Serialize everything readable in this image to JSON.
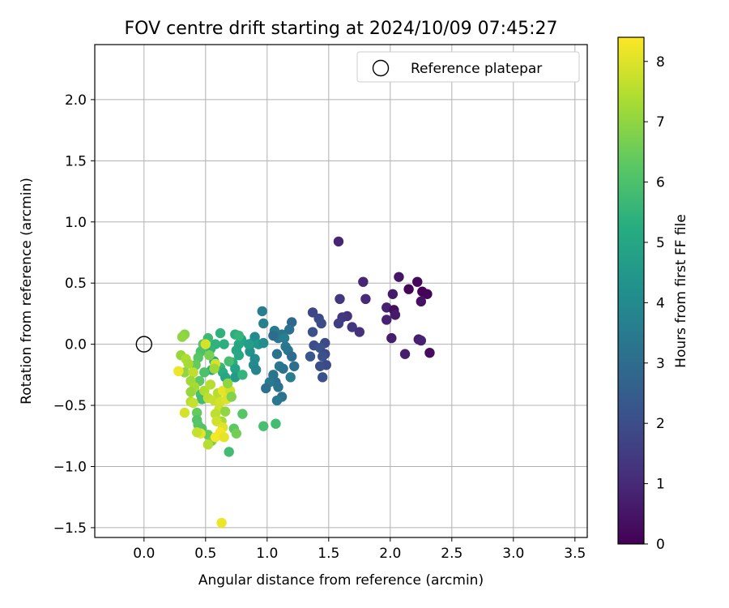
{
  "chart_data": {
    "type": "scatter",
    "title": "FOV centre drift starting at 2024/10/09 07:45:27",
    "xlabel": "Angular distance from reference (arcmin)",
    "ylabel": "Rotation from reference (arcmin)",
    "xlim": [
      -0.4,
      3.6
    ],
    "ylim": [
      -1.58,
      2.45
    ],
    "xticks": [
      0.0,
      0.5,
      1.0,
      1.5,
      2.0,
      2.5,
      3.0,
      3.5
    ],
    "xtick_labels": [
      "0.0",
      "0.5",
      "1.0",
      "1.5",
      "2.0",
      "2.5",
      "3.0",
      "3.5"
    ],
    "yticks": [
      -1.5,
      -1.0,
      -0.5,
      0.0,
      0.5,
      1.0,
      1.5,
      2.0
    ],
    "ytick_labels": [
      "−1.5",
      "−1.0",
      "−0.5",
      "0.0",
      "0.5",
      "1.0",
      "1.5",
      "2.0"
    ],
    "grid": true,
    "legend": {
      "placement": "top-right",
      "label": "Reference platepar"
    },
    "reference_point": {
      "x": 0.0,
      "y": 0.0
    },
    "colorbar": {
      "label": "Hours from first FF file",
      "colormap": "viridis",
      "range": [
        0,
        8.4
      ],
      "ticks": [
        0,
        1,
        2,
        3,
        4,
        5,
        6,
        7,
        8
      ],
      "tick_labels": [
        "0",
        "1",
        "2",
        "3",
        "4",
        "5",
        "6",
        "7",
        "8"
      ]
    },
    "points": [
      [
        1.58,
        0.84,
        0.9
      ],
      [
        2.07,
        0.55,
        0.5
      ],
      [
        2.22,
        0.51,
        0.2
      ],
      [
        2.15,
        0.45,
        0.1
      ],
      [
        2.26,
        0.43,
        0.05
      ],
      [
        2.3,
        0.41,
        0.1
      ],
      [
        2.02,
        0.41,
        0.6
      ],
      [
        2.25,
        0.35,
        0.4
      ],
      [
        1.78,
        0.51,
        0.9
      ],
      [
        1.59,
        0.37,
        1.4
      ],
      [
        1.8,
        0.37,
        1.0
      ],
      [
        1.97,
        0.3,
        0.8
      ],
      [
        2.03,
        0.28,
        0.3
      ],
      [
        2.04,
        0.24,
        0.6
      ],
      [
        1.97,
        0.2,
        0.8
      ],
      [
        1.65,
        0.23,
        1.2
      ],
      [
        1.61,
        0.22,
        1.4
      ],
      [
        1.58,
        0.17,
        1.6
      ],
      [
        1.69,
        0.14,
        1.4
      ],
      [
        1.75,
        0.1,
        1.2
      ],
      [
        2.01,
        0.05,
        0.7
      ],
      [
        2.23,
        0.04,
        0.7
      ],
      [
        2.25,
        0.03,
        0.8
      ],
      [
        2.32,
        -0.07,
        0.3
      ],
      [
        2.12,
        -0.08,
        0.7
      ],
      [
        1.37,
        0.26,
        1.8
      ],
      [
        1.42,
        0.21,
        1.9
      ],
      [
        1.44,
        0.17,
        2.0
      ],
      [
        1.37,
        0.1,
        2.1
      ],
      [
        1.47,
        0.01,
        1.9
      ],
      [
        1.38,
        -0.01,
        2.0
      ],
      [
        1.43,
        -0.03,
        2.2
      ],
      [
        1.47,
        -0.08,
        1.9
      ],
      [
        1.45,
        -0.1,
        2.1
      ],
      [
        1.35,
        -0.1,
        2.3
      ],
      [
        1.48,
        -0.17,
        1.9
      ],
      [
        1.43,
        -0.18,
        2.0
      ],
      [
        1.45,
        -0.27,
        2.1
      ],
      [
        1.2,
        0.18,
        2.8
      ],
      [
        1.18,
        0.12,
        3.1
      ],
      [
        1.12,
        0.08,
        3.3
      ],
      [
        1.06,
        0.11,
        3.5
      ],
      [
        1.09,
        0.05,
        3.4
      ],
      [
        1.05,
        0.07,
        3.0
      ],
      [
        1.14,
        0.05,
        3.6
      ],
      [
        1.15,
        -0.02,
        3.4
      ],
      [
        1.17,
        -0.05,
        3.3
      ],
      [
        1.2,
        -0.1,
        3.0
      ],
      [
        1.22,
        -0.18,
        3.1
      ],
      [
        1.08,
        -0.08,
        3.2
      ],
      [
        1.1,
        -0.18,
        3.4
      ],
      [
        1.13,
        -0.2,
        3.2
      ],
      [
        1.05,
        -0.25,
        3.3
      ],
      [
        1.07,
        -0.31,
        3.1
      ],
      [
        1.09,
        -0.35,
        3.2
      ],
      [
        1.02,
        -0.31,
        3.4
      ],
      [
        0.99,
        -0.36,
        3.1
      ],
      [
        1.12,
        -0.43,
        3.2
      ],
      [
        1.08,
        -0.46,
        3.4
      ],
      [
        1.19,
        -0.27,
        3.6
      ],
      [
        0.97,
        0.17,
        3.7
      ],
      [
        0.96,
        0.27,
        3.6
      ],
      [
        0.9,
        0.06,
        4.0
      ],
      [
        0.88,
        0.01,
        4.2
      ],
      [
        0.86,
        -0.06,
        4.3
      ],
      [
        0.9,
        -0.12,
        4.1
      ],
      [
        0.89,
        -0.17,
        4.0
      ],
      [
        0.91,
        -0.21,
        3.8
      ],
      [
        0.93,
        0.0,
        4.4
      ],
      [
        0.97,
        0.01,
        4.1
      ],
      [
        0.85,
        0.0,
        4.7
      ],
      [
        0.79,
        0.04,
        4.9
      ],
      [
        0.77,
        0.0,
        5.0
      ],
      [
        0.75,
        -0.05,
        5.0
      ],
      [
        0.77,
        -0.09,
        5.1
      ],
      [
        0.72,
        -0.15,
        5.3
      ],
      [
        0.74,
        -0.2,
        4.9
      ],
      [
        0.74,
        -0.27,
        4.6
      ],
      [
        0.8,
        -0.25,
        5.5
      ],
      [
        0.74,
        0.08,
        5.3
      ],
      [
        0.77,
        0.07,
        5.5
      ],
      [
        0.62,
        0.09,
        5.4
      ],
      [
        0.65,
        0.0,
        5.3
      ],
      [
        0.58,
        0.0,
        5.4
      ],
      [
        0.54,
        -0.04,
        5.5
      ],
      [
        0.57,
        -0.14,
        5.1
      ],
      [
        0.55,
        -0.21,
        5.0
      ],
      [
        0.62,
        -0.19,
        5.6
      ],
      [
        0.64,
        -0.23,
        5.3
      ],
      [
        0.66,
        -0.27,
        5.0
      ],
      [
        0.69,
        -0.14,
        5.9
      ],
      [
        0.52,
        0.05,
        5.7
      ],
      [
        0.48,
        0.0,
        6.2
      ],
      [
        0.46,
        -0.06,
        6.0
      ],
      [
        0.44,
        -0.11,
        6.2
      ],
      [
        0.42,
        -0.17,
        6.4
      ],
      [
        0.49,
        -0.23,
        6.0
      ],
      [
        0.45,
        -0.3,
        6.3
      ],
      [
        0.46,
        -0.41,
        5.9
      ],
      [
        0.47,
        -0.45,
        5.8
      ],
      [
        0.43,
        -0.56,
        6.4
      ],
      [
        0.43,
        -0.62,
        6.1
      ],
      [
        0.44,
        -0.66,
        6.2
      ],
      [
        0.47,
        -0.69,
        6.1
      ],
      [
        0.52,
        -0.74,
        6.4
      ],
      [
        0.55,
        -0.79,
        6.6
      ],
      [
        0.69,
        -0.88,
        5.8
      ],
      [
        0.97,
        -0.67,
        5.9
      ],
      [
        1.07,
        -0.65,
        5.8
      ],
      [
        0.8,
        -0.57,
        6.2
      ],
      [
        0.73,
        -0.69,
        6.3
      ],
      [
        0.75,
        -0.73,
        6.6
      ],
      [
        0.33,
        0.08,
        6.9
      ],
      [
        0.31,
        0.06,
        7.0
      ],
      [
        0.3,
        -0.09,
        7.1
      ],
      [
        0.34,
        -0.12,
        7.4
      ],
      [
        0.36,
        -0.16,
        7.3
      ],
      [
        0.33,
        -0.23,
        7.0
      ],
      [
        0.4,
        -0.23,
        7.6
      ],
      [
        0.38,
        -0.3,
        7.2
      ],
      [
        0.41,
        -0.35,
        7.3
      ],
      [
        0.38,
        -0.39,
        7.1
      ],
      [
        0.38,
        -0.47,
        7.5
      ],
      [
        0.49,
        -0.38,
        7.4
      ],
      [
        0.54,
        -0.33,
        7.5
      ],
      [
        0.52,
        -0.44,
        7.6
      ],
      [
        0.57,
        -0.46,
        7.7
      ],
      [
        0.6,
        -0.4,
        7.5
      ],
      [
        0.62,
        -0.47,
        7.9
      ],
      [
        0.64,
        -0.38,
        8.1
      ],
      [
        0.7,
        -0.38,
        7.8
      ],
      [
        0.67,
        -0.45,
        8.0
      ],
      [
        0.61,
        -0.53,
        7.8
      ],
      [
        0.58,
        -0.57,
        7.6
      ],
      [
        0.63,
        -0.63,
        7.3
      ],
      [
        0.59,
        -0.63,
        7.8
      ],
      [
        0.64,
        -0.68,
        8.0
      ],
      [
        0.62,
        -0.72,
        8.3
      ],
      [
        0.58,
        -0.76,
        8.3
      ],
      [
        0.65,
        -0.76,
        8.1
      ],
      [
        0.52,
        -0.82,
        7.5
      ],
      [
        0.46,
        -0.73,
        8.1
      ],
      [
        0.43,
        -0.72,
        7.7
      ],
      [
        0.33,
        -0.56,
        7.9
      ],
      [
        0.28,
        -0.22,
        8.2
      ],
      [
        0.4,
        -0.48,
        7.7
      ],
      [
        0.58,
        -0.16,
        7.9
      ],
      [
        0.53,
        -0.09,
        6.7
      ],
      [
        0.5,
        0.0,
        7.9
      ],
      [
        0.63,
        -1.46,
        8.2
      ],
      [
        0.57,
        -0.2,
        7.2
      ],
      [
        0.68,
        -0.32,
        7.0
      ],
      [
        0.71,
        -0.43,
        6.8
      ],
      [
        0.66,
        -0.55,
        7.0
      ]
    ]
  }
}
